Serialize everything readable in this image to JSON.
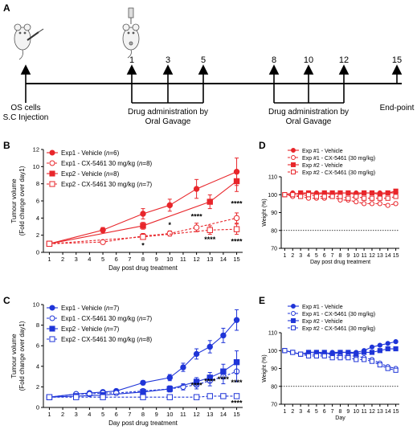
{
  "panel_labels": {
    "a": "A",
    "b": "B",
    "c": "C",
    "d": "D",
    "e": "E"
  },
  "timeline": {
    "start_label_1": "OS cells",
    "start_label_2": "S.C Injection",
    "group1_label_1": "Drug administration by",
    "group1_label_2": "Oral Gavage",
    "group2_label_1": "Drug administration by",
    "group2_label_2": "Oral Gavage",
    "end_label": "End-point",
    "days": [
      "1",
      "3",
      "5",
      "8",
      "10",
      "12",
      "15"
    ]
  },
  "colors": {
    "red": "#e8262b",
    "blue": "#1f35d8"
  },
  "icons": [
    "mouse-injection-icon",
    "mouse-dosing-icon"
  ],
  "chart_data": [
    {
      "id": "B",
      "type": "line",
      "xlabel": "Day post drug treatment",
      "ylabel": "Tumour volume (Fold change over day1)",
      "ylabel_line1": "Tumour volume",
      "ylabel_line2": "(Fold change over day1)",
      "ylim": [
        0,
        12
      ],
      "yticks": [
        "0",
        "2",
        "4",
        "6",
        "8",
        "10",
        "12"
      ],
      "xticks": [
        "1",
        "2",
        "3",
        "4",
        "5",
        "6",
        "7",
        "8",
        "9",
        "10",
        "11",
        "12",
        "13",
        "14",
        "15"
      ],
      "legend_position": "top-left",
      "series": [
        {
          "name": "Exp1 - Vehicle (n=6)",
          "label_main": "Exp1 - Vehicle (",
          "label_n": "n",
          "label_tail": "=6)",
          "color": "#e8262b",
          "marker": "circle",
          "fill": "filled",
          "dash": "solid",
          "x": [
            1,
            5,
            8,
            10,
            12,
            15
          ],
          "y": [
            1.0,
            2.6,
            4.5,
            5.5,
            7.4,
            9.4
          ],
          "err": [
            0.1,
            0.3,
            0.6,
            0.7,
            1.1,
            1.6
          ]
        },
        {
          "name": "Exp1 - CX-5461 30 mg/kg (n=8)",
          "label_main": "Exp1 - CX-5461 30 mg/kg (",
          "label_n": "n",
          "label_tail": "=8)",
          "color": "#e8262b",
          "marker": "circle",
          "fill": "open",
          "dash": "dashed",
          "x": [
            1,
            5,
            8,
            10,
            12,
            15
          ],
          "y": [
            1.0,
            1.2,
            1.9,
            2.2,
            2.9,
            4.0
          ],
          "err": [
            0.1,
            0.1,
            0.3,
            0.3,
            0.5,
            0.6
          ]
        },
        {
          "name": "Exp2 - Vehicle (n=8)",
          "label_main": "Exp2 - Vehicle (",
          "label_n": "n",
          "label_tail": "=8)",
          "color": "#e8262b",
          "marker": "square",
          "fill": "filled",
          "dash": "solid",
          "x": [
            1,
            8,
            13,
            15
          ],
          "y": [
            1.0,
            3.1,
            5.9,
            8.3
          ],
          "err": [
            0.1,
            0.4,
            0.8,
            1.2
          ]
        },
        {
          "name": "Exp2 - CX-5461 30 mg/kg (n=7)",
          "label_main": "Exp2 - CX-5461 30 mg/kg (",
          "label_n": "n",
          "label_tail": "=7)",
          "color": "#e8262b",
          "marker": "square",
          "fill": "open",
          "dash": "dashed",
          "x": [
            1,
            8,
            13,
            15
          ],
          "y": [
            1.0,
            1.8,
            2.6,
            2.7
          ],
          "err": [
            0.1,
            0.3,
            0.5,
            0.6
          ]
        }
      ],
      "annotations": [
        {
          "x": 8,
          "y": 0.5,
          "text": "*"
        },
        {
          "x": 10,
          "y": 2.9,
          "text": "*"
        },
        {
          "x": 12,
          "y": 3.9,
          "text": "****"
        },
        {
          "x": 13,
          "y": 1.2,
          "text": "****"
        },
        {
          "x": 15,
          "y": 5.4,
          "text": "****"
        },
        {
          "x": 15,
          "y": 1.0,
          "text": "****"
        }
      ]
    },
    {
      "id": "C",
      "type": "line",
      "xlabel": "Day post drug treatment",
      "ylabel": "Tumour volume (Fold change over day1)",
      "ylabel_line1": "Tumour volume",
      "ylabel_line2": "(Fold change over day1)",
      "ylim": [
        0,
        10
      ],
      "yticks": [
        "0",
        "2",
        "4",
        "6",
        "8",
        "10"
      ],
      "xticks": [
        "1",
        "2",
        "3",
        "4",
        "5",
        "6",
        "7",
        "8",
        "9",
        "10",
        "11",
        "12",
        "13",
        "14",
        "15"
      ],
      "legend_position": "top-left",
      "series": [
        {
          "name": "Exp1 - Vehicle (n=7)",
          "label_main": "Exp1 - Vehicle (",
          "label_n": "n",
          "label_tail": "=7)",
          "color": "#1f35d8",
          "marker": "circle",
          "fill": "filled",
          "dash": "solid",
          "x": [
            1,
            3,
            4,
            5,
            6,
            8,
            10,
            11,
            12,
            13,
            14,
            15
          ],
          "y": [
            1.0,
            1.3,
            1.4,
            1.5,
            1.6,
            2.4,
            2.9,
            3.9,
            5.2,
            5.9,
            7.0,
            8.5
          ],
          "err": [
            0.05,
            0.1,
            0.1,
            0.1,
            0.1,
            0.2,
            0.3,
            0.4,
            0.5,
            0.6,
            0.7,
            1.0
          ]
        },
        {
          "name": "Exp1 - CX-5461 30 mg/kg (n=7)",
          "label_main": "Exp1 - CX-5461 30 mg/kg (",
          "label_n": "n",
          "label_tail": "=7)",
          "color": "#1f35d8",
          "marker": "circle",
          "fill": "open",
          "dash": "dashed",
          "x": [
            1,
            3,
            4,
            5,
            6,
            8,
            10,
            11,
            12,
            13,
            14,
            15
          ],
          "y": [
            1.0,
            1.3,
            1.3,
            1.4,
            1.4,
            1.6,
            1.8,
            2.0,
            2.2,
            2.6,
            3.0,
            3.5
          ],
          "err": [
            0.05,
            0.1,
            0.1,
            0.1,
            0.1,
            0.2,
            0.2,
            0.3,
            0.4,
            0.5,
            0.7,
            1.0
          ]
        },
        {
          "name": "Exp2 - Vehicle (n=7)",
          "label_main": "Exp2 - Vehicle (",
          "label_n": "n",
          "label_tail": "=7)",
          "color": "#1f35d8",
          "marker": "square",
          "fill": "filled",
          "dash": "solid",
          "x": [
            1,
            3,
            5,
            8,
            10,
            12,
            13,
            14,
            15
          ],
          "y": [
            1.0,
            1.1,
            1.2,
            1.5,
            1.8,
            2.5,
            2.9,
            3.5,
            4.4
          ],
          "err": [
            0.05,
            0.1,
            0.1,
            0.2,
            0.3,
            0.4,
            0.5,
            0.7,
            1.1
          ]
        },
        {
          "name": "Exp2 - CX-5461 30 mg/kg (n=8)",
          "label_main": "Exp2 - CX-5461 30 mg/kg (",
          "label_n": "n",
          "label_tail": "=8)",
          "color": "#1f35d8",
          "marker": "square",
          "fill": "open",
          "dash": "dashed",
          "x": [
            1,
            3,
            5,
            8,
            10,
            12,
            13,
            14,
            15
          ],
          "y": [
            1.0,
            1.0,
            1.0,
            1.0,
            1.0,
            1.0,
            1.1,
            1.1,
            1.1
          ],
          "err": [
            0.05,
            0.1,
            0.1,
            0.1,
            0.1,
            0.1,
            0.1,
            0.1,
            0.2
          ]
        }
      ],
      "annotations": [
        {
          "x": 12,
          "y": 1.9,
          "text": "****"
        },
        {
          "x": 13,
          "y": 2.3,
          "text": "****"
        },
        {
          "x": 14,
          "y": 2.5,
          "text": "****"
        },
        {
          "x": 15,
          "y": 2.2,
          "text": "****"
        },
        {
          "x": 15,
          "y": 0.2,
          "text": "****"
        }
      ]
    },
    {
      "id": "D",
      "type": "line",
      "xlabel": "Day post drug treatment",
      "ylabel": "Weight (%)",
      "ylim": [
        70,
        110
      ],
      "yticks": [
        "70",
        "80",
        "90",
        "100",
        "110"
      ],
      "xticks": [
        "1",
        "2",
        "3",
        "4",
        "5",
        "6",
        "7",
        "8",
        "9",
        "10",
        "11",
        "12",
        "13",
        "14",
        "15"
      ],
      "reference_line": 80,
      "legend_position": "top",
      "series": [
        {
          "name": "Exp #1 - Vehicle",
          "color": "#e8262b",
          "marker": "circle",
          "fill": "filled",
          "dash": "solid",
          "x": [
            1,
            2,
            3,
            4,
            5,
            6,
            7,
            8,
            9,
            10,
            11,
            12,
            13,
            14,
            15
          ],
          "y": [
            100,
            101,
            100,
            101,
            101,
            101,
            100,
            101,
            101,
            101,
            101,
            101,
            101,
            101,
            101
          ]
        },
        {
          "name": "Exp #1 - CX-5461 (30 mg/kg)",
          "color": "#e8262b",
          "marker": "circle",
          "fill": "open",
          "dash": "dashed",
          "x": [
            1,
            2,
            3,
            4,
            5,
            6,
            7,
            8,
            9,
            10,
            11,
            12,
            13,
            14,
            15
          ],
          "y": [
            100,
            99,
            99,
            98,
            98,
            98,
            99,
            97,
            97,
            96,
            95,
            95,
            95,
            94,
            95
          ]
        },
        {
          "name": "Exp #2 - Vehicle",
          "color": "#e8262b",
          "marker": "square",
          "fill": "filled",
          "dash": "solid",
          "x": [
            1,
            2,
            3,
            4,
            5,
            6,
            7,
            8,
            9,
            10,
            11,
            12,
            13,
            14,
            15
          ],
          "y": [
            100,
            100,
            101,
            101,
            100,
            101,
            101,
            101,
            101,
            100,
            101,
            101,
            100,
            101,
            102
          ]
        },
        {
          "name": "Exp #2 - CX-5461 (30 mg/kg)",
          "color": "#e8262b",
          "marker": "square",
          "fill": "open",
          "dash": "dashed",
          "x": [
            1,
            2,
            3,
            4,
            5,
            6,
            7,
            8,
            9,
            10,
            11,
            12,
            13,
            14,
            15
          ],
          "y": [
            100,
            100,
            99,
            100,
            99,
            99,
            99,
            99,
            98,
            99,
            98,
            98,
            98,
            98,
            99
          ]
        }
      ]
    },
    {
      "id": "E",
      "type": "line",
      "xlabel": "Day",
      "ylabel": "Weight (%)",
      "ylim": [
        70,
        110
      ],
      "yticks": [
        "70",
        "80",
        "90",
        "100",
        "110"
      ],
      "xticks": [
        "1",
        "2",
        "3",
        "4",
        "5",
        "6",
        "7",
        "8",
        "9",
        "10",
        "11",
        "12",
        "13",
        "14",
        "15"
      ],
      "reference_line": 80,
      "legend_position": "top",
      "series": [
        {
          "name": "Exp #1 - Vehicle",
          "color": "#1f35d8",
          "marker": "circle",
          "fill": "filled",
          "dash": "solid",
          "x": [
            1,
            2,
            3,
            4,
            5,
            6,
            7,
            8,
            9,
            10,
            11,
            12,
            13,
            14,
            15
          ],
          "y": [
            100,
            99,
            98,
            99,
            99,
            98,
            99,
            99,
            99,
            99,
            100,
            102,
            103,
            104,
            105
          ]
        },
        {
          "name": "Exp #1 - CX-5461 (30 mg/kg)",
          "color": "#1f35d8",
          "marker": "circle",
          "fill": "open",
          "dash": "dashed",
          "x": [
            1,
            2,
            3,
            4,
            5,
            6,
            7,
            8,
            9,
            10,
            11,
            12,
            13,
            14,
            15
          ],
          "y": [
            100,
            99,
            98,
            98,
            98,
            98,
            98,
            97,
            97,
            97,
            96,
            95,
            93,
            91,
            90
          ]
        },
        {
          "name": "Exp #2 - Vehicle",
          "color": "#1f35d8",
          "marker": "square",
          "fill": "filled",
          "dash": "solid",
          "x": [
            1,
            2,
            3,
            4,
            5,
            6,
            7,
            8,
            9,
            10,
            11,
            12,
            13,
            14,
            15
          ],
          "y": [
            100,
            99,
            98,
            99,
            99,
            99,
            98,
            99,
            99,
            98,
            99,
            99,
            100,
            101,
            101
          ]
        },
        {
          "name": "Exp #2 - CX-5461 (30 mg/kg)",
          "color": "#1f35d8",
          "marker": "square",
          "fill": "open",
          "dash": "dashed",
          "x": [
            1,
            2,
            3,
            4,
            5,
            6,
            7,
            8,
            9,
            10,
            11,
            12,
            13,
            14,
            15
          ],
          "y": [
            100,
            99,
            98,
            97,
            97,
            97,
            96,
            96,
            96,
            95,
            95,
            94,
            92,
            90,
            89
          ]
        }
      ]
    }
  ]
}
